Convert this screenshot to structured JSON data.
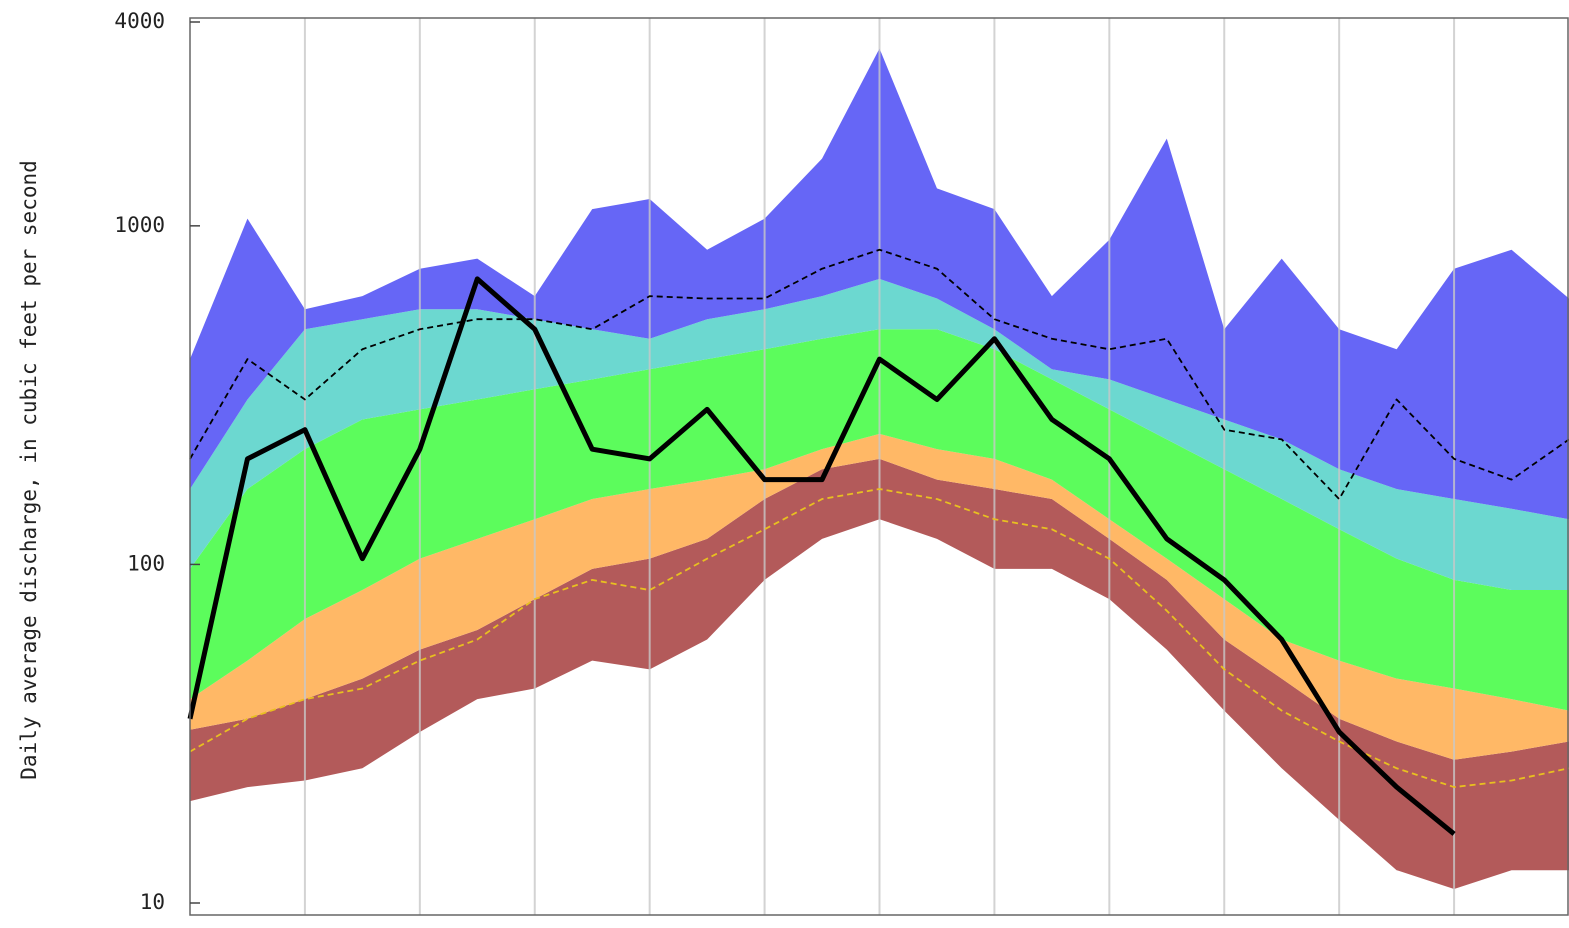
{
  "chart_data": {
    "type": "area",
    "ylabel": "Daily average discharge, in cubic feet per second",
    "ylog": true,
    "ylim": [
      10,
      4000
    ],
    "yticks": [
      10,
      100,
      1000,
      4000
    ],
    "grid": "x",
    "categories": [
      null,
      null,
      null,
      null,
      null,
      null,
      null,
      null,
      null,
      null,
      null,
      null,
      null,
      null,
      null,
      null,
      null,
      null,
      null,
      null,
      null,
      null,
      null,
      null,
      null
    ],
    "series": [
      {
        "values": [
          20,
          22,
          23,
          25,
          32,
          40,
          43,
          52,
          49,
          60,
          90,
          119,
          136,
          119,
          97,
          97,
          79,
          56,
          37,
          25,
          17.6,
          12.5,
          11,
          12.5,
          12.5
        ]
      },
      {
        "color": "#b35a5a",
        "values": [
          32.5,
          35,
          40,
          46,
          56,
          64,
          79,
          97,
          104,
          119,
          156,
          191,
          205,
          178,
          167,
          156,
          119,
          90,
          60,
          46,
          35,
          30,
          26.5,
          28,
          30
        ]
      },
      {
        "color": "#ffb866",
        "values": [
          40,
          52,
          69,
          84,
          104,
          119,
          136,
          156,
          167,
          178,
          191,
          219,
          243,
          219,
          205,
          178,
          136,
          104,
          79,
          60,
          52,
          46,
          43,
          40,
          37
        ]
      },
      {
        "color": "#5cfc5c",
        "values": [
          97,
          167,
          219,
          268,
          287,
          307,
          329,
          352,
          377,
          404,
          432,
          464,
          495,
          495,
          432,
          352,
          287,
          234,
          191,
          156,
          127,
          104,
          90,
          84,
          84
        ]
      },
      {
        "color": "#6cd8d0",
        "values": [
          167,
          307,
          495,
          530,
          567,
          567,
          530,
          495,
          464,
          530,
          567,
          620,
          697,
          610,
          495,
          377,
          352,
          307,
          268,
          234,
          191,
          167,
          156,
          146,
          136
        ]
      },
      {
        "color": "#6666f6",
        "values": [
          404,
          1050,
          567,
          620,
          747,
          800,
          620,
          1120,
          1200,
          850,
          1050,
          1580,
          3340,
          1290,
          1120,
          620,
          910,
          1810,
          495,
          800,
          495,
          432,
          747,
          850,
          610
        ]
      },
      {
        "color": "#000000",
        "style": "dashed",
        "values": [
          205,
          404,
          307,
          432,
          495,
          530,
          530,
          495,
          620,
          610,
          610,
          747,
          850,
          747,
          530,
          464,
          432,
          464,
          250,
          234,
          156,
          307,
          205,
          178,
          234
        ]
      },
      {
        "color": "#e8c020",
        "style": "dashed",
        "values": [
          28,
          35,
          40,
          43,
          52,
          60,
          79,
          90,
          84,
          104,
          127,
          156,
          167,
          156,
          136,
          127,
          104,
          73,
          49,
          37,
          30,
          25,
          22,
          23,
          25
        ]
      },
      {
        "color": "#000000",
        "style": "solid",
        "values": [
          35,
          205,
          250,
          104,
          219,
          697,
          495,
          219,
          205,
          287,
          178,
          178,
          404,
          307,
          464,
          268,
          205,
          119,
          90,
          60,
          32,
          22,
          16,
          null,
          null
        ]
      }
    ]
  }
}
